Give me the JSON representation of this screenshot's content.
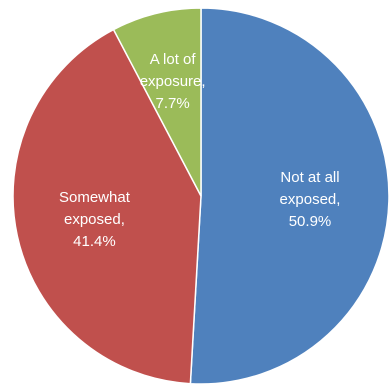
{
  "chart_data": {
    "type": "pie",
    "title": "",
    "slices": [
      {
        "name": "Not at all exposed",
        "value": 50.9,
        "color": "#4f81bd",
        "label_lines": [
          "Not at all",
          "exposed,",
          "50.9%"
        ]
      },
      {
        "name": "Somewhat exposed",
        "value": 41.4,
        "color": "#c0504d",
        "label_lines": [
          "Somewhat",
          "exposed,",
          "41.4%"
        ]
      },
      {
        "name": "A lot of exposure",
        "value": 7.7,
        "color": "#9bbb59",
        "label_lines": [
          "A lot of",
          "exposure,",
          "7.7%"
        ]
      }
    ],
    "start": "top",
    "direction": "clockwise",
    "legend": "none",
    "data_labels": "inside"
  }
}
